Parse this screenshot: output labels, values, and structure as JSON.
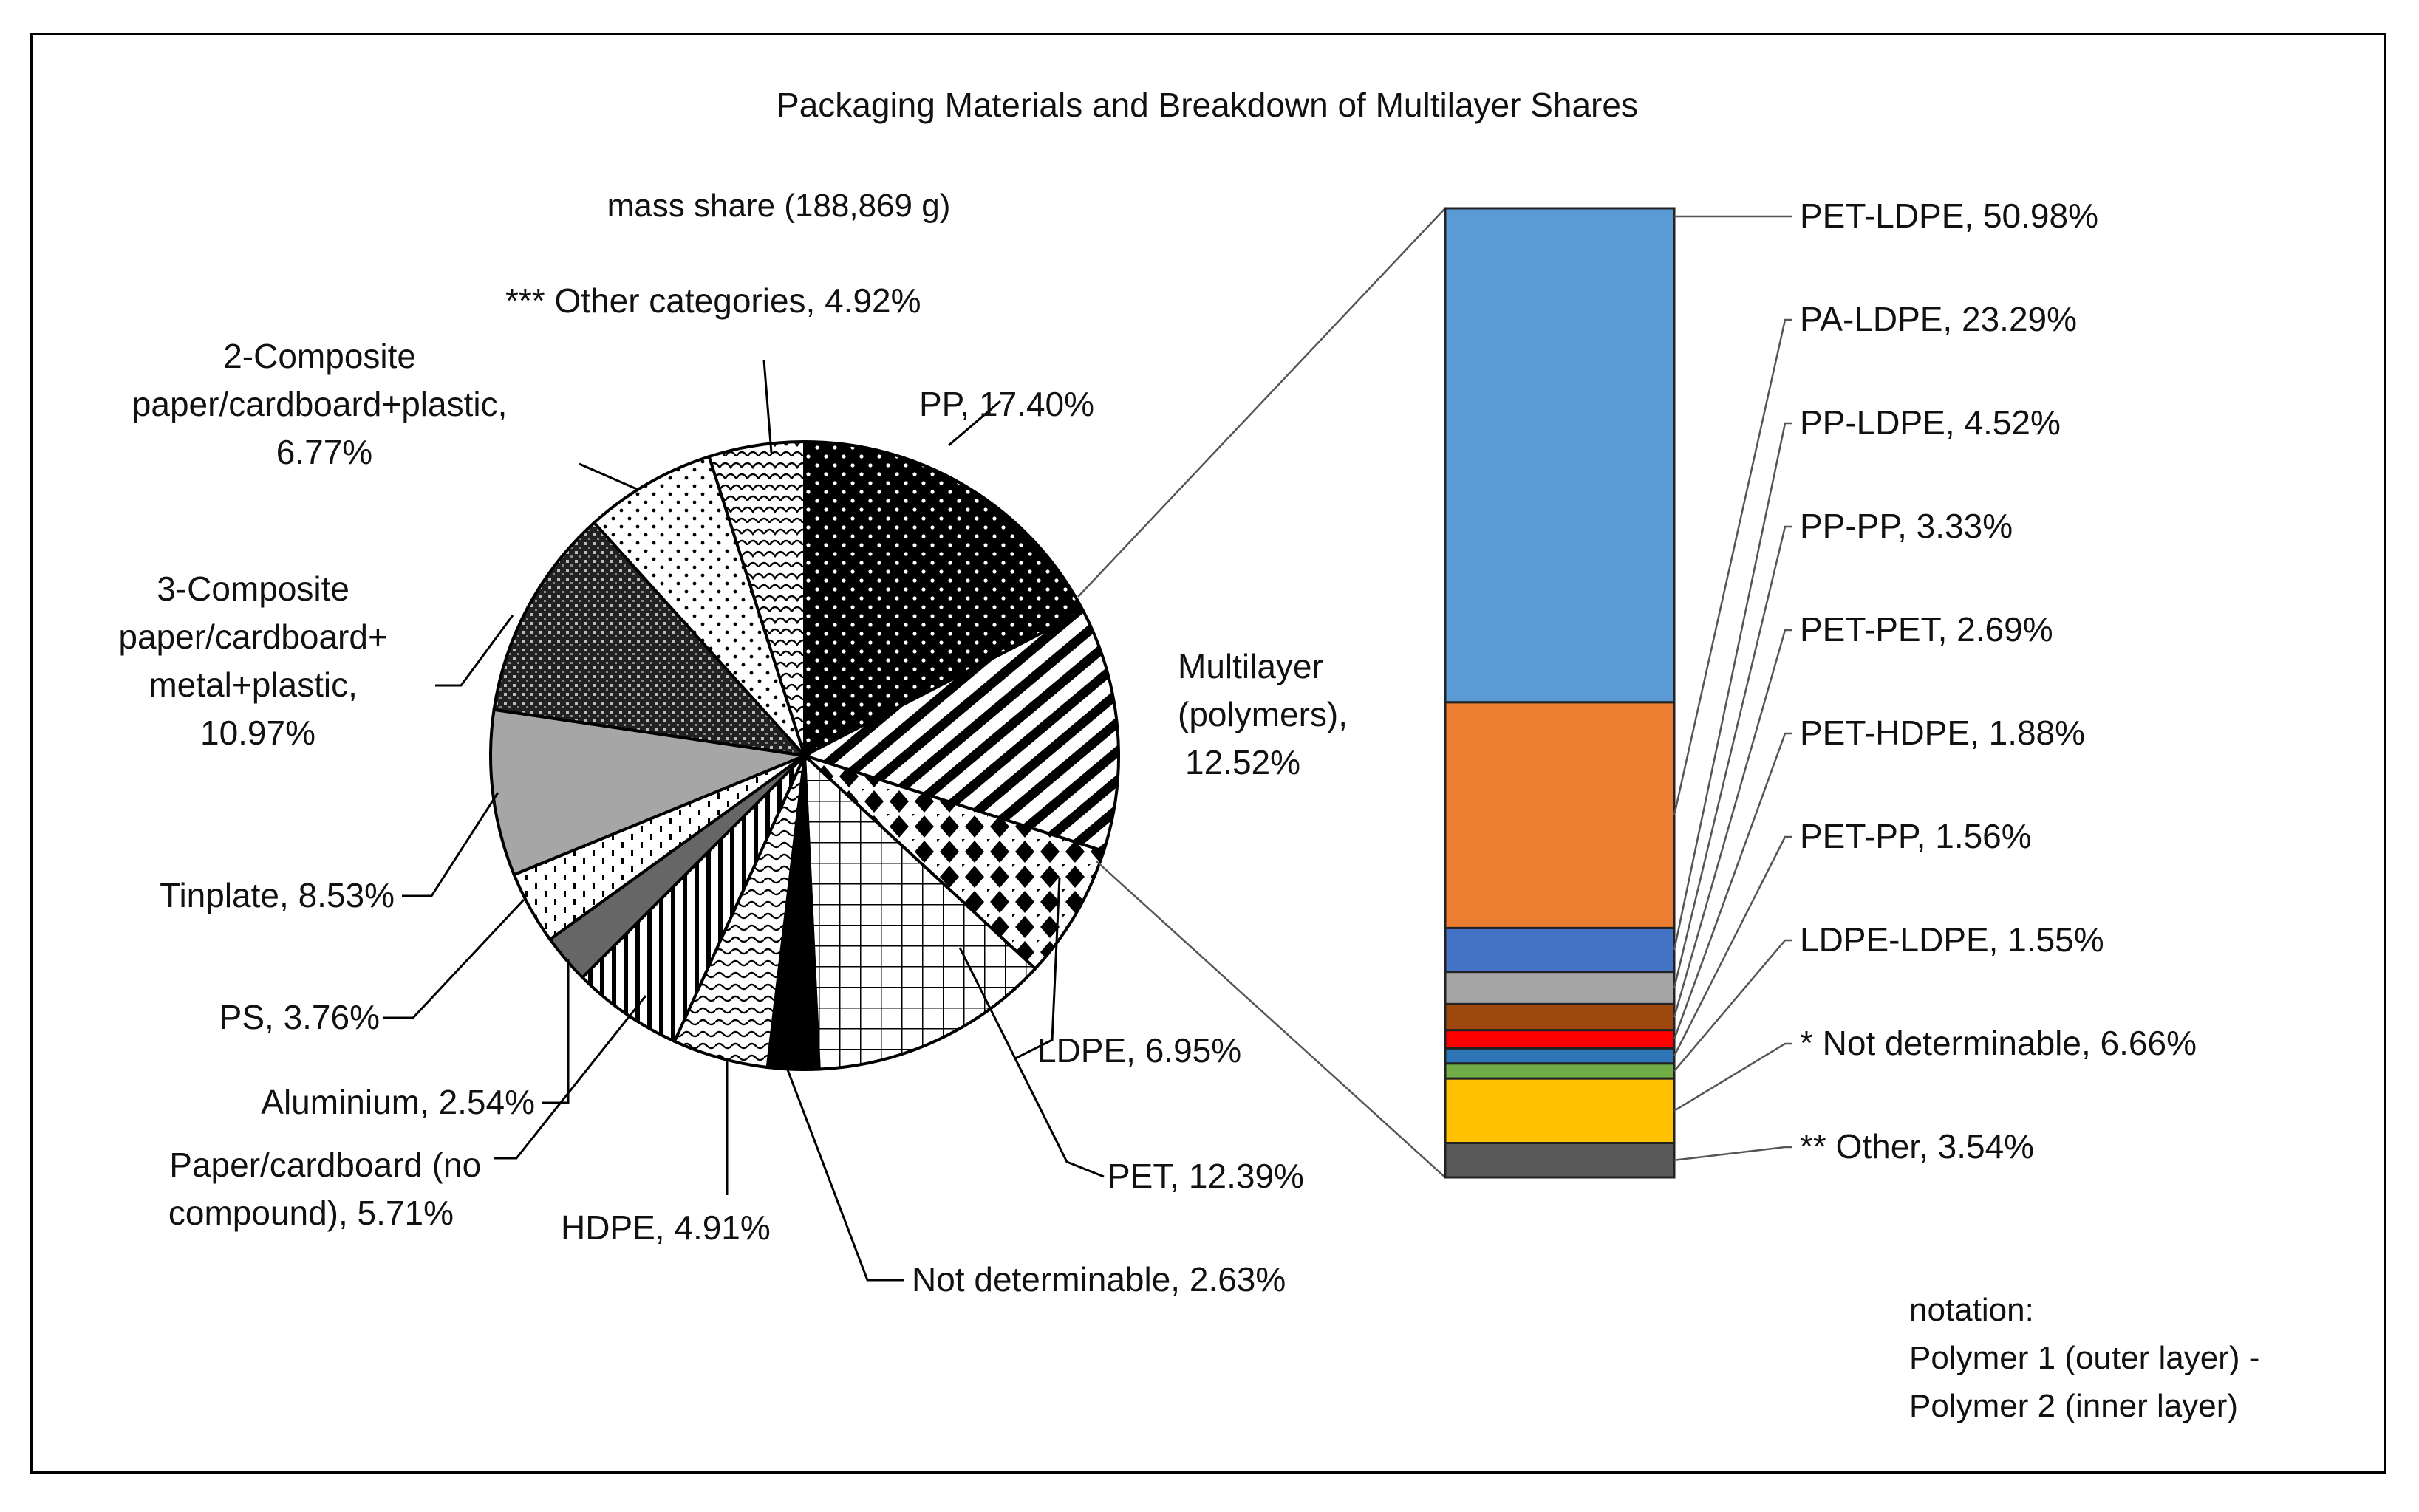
{
  "chart_data": [
    {
      "type": "pie",
      "title": "Packaging Materials and Breakdown of Multilayer Shares",
      "subtitle": "mass share (188,869 g)",
      "slices": [
        {
          "name": "PP",
          "value": 17.4,
          "label": "PP, 17.40%",
          "pattern": "dots-white-on-black"
        },
        {
          "name": "Multilayer (polymers)",
          "value": 12.52,
          "label": "Multilayer (polymers), 12.52%",
          "pattern": "diagonal-stripes"
        },
        {
          "name": "LDPE",
          "value": 6.95,
          "label": "LDPE, 6.95%",
          "pattern": "checker-diamonds"
        },
        {
          "name": "PET",
          "value": 12.39,
          "label": "PET, 12.39%",
          "pattern": "grid"
        },
        {
          "name": "Not determinable",
          "value": 2.63,
          "label": "Not determinable, 2.63%",
          "pattern": "solid-black"
        },
        {
          "name": "HDPE",
          "value": 4.91,
          "label": "HDPE, 4.91%",
          "pattern": "waves"
        },
        {
          "name": "Paper/cardboard (no compound)",
          "value": 5.71,
          "label": "Paper/cardboard (no compound), 5.71%",
          "pattern": "vertical-lines"
        },
        {
          "name": "Aluminium",
          "value": 2.54,
          "label": "Aluminium, 2.54%",
          "pattern": "solid-dark-gray"
        },
        {
          "name": "PS",
          "value": 3.76,
          "label": "PS, 3.76%",
          "pattern": "dashes"
        },
        {
          "name": "Tinplate",
          "value": 8.53,
          "label": "Tinplate, 8.53%",
          "pattern": "solid-light-gray"
        },
        {
          "name": "3-Composite paper/cardboard+ metal+plastic",
          "value": 10.97,
          "label": "3-Composite paper/cardboard+ metal+plastic, 10.97%",
          "pattern": "dense-crosshatch"
        },
        {
          "name": "2-Composite paper/cardboard+plastic",
          "value": 6.77,
          "label": "2-Composite paper/cardboard+plastic, 6.77%",
          "pattern": "sparse-dots"
        },
        {
          "name": "*** Other categories",
          "value": 4.92,
          "label": "*** Other categories, 4.92%",
          "pattern": "scales"
        }
      ],
      "labels": {
        "pp": "PP, 17.40%",
        "multilayer": [
          "Multilayer",
          "(polymers),",
          "12.52%"
        ],
        "ldpe": "LDPE, 6.95%",
        "pet": "PET, 12.39%",
        "not_det": "Not determinable, 2.63%",
        "hdpe": "HDPE, 4.91%",
        "paper": [
          "Paper/cardboard (no",
          "compound), 5.71%"
        ],
        "aluminium": "Aluminium, 2.54%",
        "ps": "PS, 3.76%",
        "tinplate": "Tinplate, 8.53%",
        "comp3": [
          "3-Composite",
          "paper/cardboard+",
          "metal+plastic,",
          "10.97%"
        ],
        "comp2": [
          "2-Composite",
          "paper/cardboard+plastic,",
          "6.77%"
        ],
        "other": "*** Other categories, 4.92%"
      }
    },
    {
      "type": "bar",
      "stacked": true,
      "orientation": "vertical",
      "series": [
        {
          "name": "PET-LDPE",
          "value": 50.98,
          "label": "PET-LDPE, 50.98%",
          "color": "#5B9BD5"
        },
        {
          "name": "PA-LDPE",
          "value": 23.29,
          "label": "PA-LDPE, 23.29%",
          "color": "#ED7D31"
        },
        {
          "name": "PP-LDPE",
          "value": 4.52,
          "label": "PP-LDPE, 4.52%",
          "color": "#4472C4"
        },
        {
          "name": "PP-PP",
          "value": 3.33,
          "label": "PP-PP, 3.33%",
          "color": "#A5A5A5"
        },
        {
          "name": "PET-PET",
          "value": 2.69,
          "label": "PET-PET, 2.69%",
          "color": "#9E480E"
        },
        {
          "name": "PET-HDPE",
          "value": 1.88,
          "label": "PET-HDPE, 1.88%",
          "color": "#FF0000"
        },
        {
          "name": "PET-PP",
          "value": 1.56,
          "label": "PET-PP, 1.56%",
          "color": "#2E75B6"
        },
        {
          "name": "LDPE-LDPE",
          "value": 1.55,
          "label": "LDPE-LDPE, 1.55%",
          "color": "#70AD47"
        },
        {
          "name": "* Not determinable",
          "value": 6.66,
          "label": "* Not determinable, 6.66%",
          "color": "#FFC000"
        },
        {
          "name": "** Other",
          "value": 3.54,
          "label": "** Other, 3.54%",
          "color": "#595959"
        }
      ],
      "notation": [
        "notation:",
        "Polymer 1 (outer layer) -",
        "Polymer 2 (inner layer)"
      ]
    }
  ]
}
